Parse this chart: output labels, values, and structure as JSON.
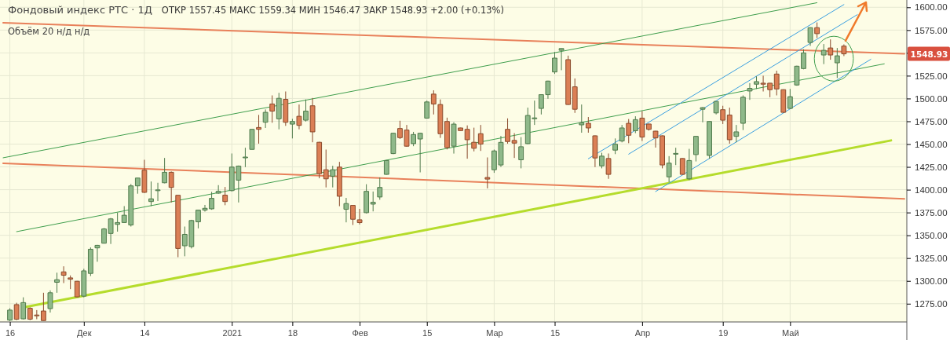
{
  "chart_data": {
    "type": "candlestick",
    "title": "Фондовый индекс РТС · 1Д",
    "subtitle": "ОТКР 1557.45  МАКС 1559.34  МИН 1546.47  ЗАКР 1548.93  +2.00 (+0.13%)",
    "annotations": [
      "Объём 20  н/д н/д",
      "1548.93"
    ],
    "categories": [
      null,
      "16",
      null,
      null,
      null,
      null,
      null,
      null,
      null,
      null,
      null,
      null,
      "Дек",
      null,
      null,
      null,
      null,
      null,
      null,
      null,
      null,
      "14",
      null,
      null,
      null,
      null,
      null,
      null,
      null,
      null,
      null,
      null,
      null,
      null,
      "2021",
      null,
      null,
      null,
      null,
      null,
      null,
      null,
      null,
      "18",
      null,
      null,
      null,
      null,
      null,
      null,
      null,
      null,
      null,
      "Фев",
      null,
      null,
      null,
      null,
      null,
      null,
      null,
      null,
      null,
      "15",
      null,
      null,
      null,
      null,
      null,
      null,
      null,
      null,
      null,
      "Мар",
      null,
      null,
      null,
      null,
      null,
      null,
      null,
      null,
      "15",
      null,
      null,
      null,
      null,
      null,
      null,
      null,
      null,
      null,
      null,
      null,
      null,
      "Апр",
      null,
      null,
      null,
      null,
      null,
      null,
      null,
      null,
      null,
      null,
      null,
      "19",
      null,
      null,
      null,
      null,
      null,
      null,
      null,
      null,
      null,
      "Май",
      null,
      null,
      null,
      null,
      null,
      null,
      null,
      null,
      null,
      null,
      null,
      null,
      null,
      null,
      null,
      null,
      null
    ],
    "ohlc": [
      null,
      [
        1257,
        1270,
        1256,
        1268
      ],
      [
        1274,
        1276,
        1257,
        1258
      ],
      [
        1258.4,
        1282,
        1257.6,
        1276.2
      ],
      [
        1270,
        1271,
        1257,
        1258
      ],
      [
        1262.6,
        1268,
        1258,
        1262.2
      ],
      [
        1267,
        1287,
        1256.2,
        1256.5
      ],
      [
        1269.6,
        1289.6,
        1265.3,
        1287
      ],
      [
        1298.5,
        1309,
        1287,
        1301.3
      ],
      [
        1309.9,
        1316,
        1297.6,
        1306.2
      ],
      [
        1303.3,
        1306,
        1291,
        1301.9
      ],
      [
        1299.6,
        1300,
        1282,
        1282.5
      ],
      [
        1283.3,
        1313.3,
        1282,
        1311
      ],
      [
        1308.2,
        1336.7,
        1305.3,
        1334.7
      ],
      [
        1336.2,
        1339.5,
        1321,
        1339
      ],
      [
        1341.3,
        1358,
        1341,
        1357
      ],
      [
        1352,
        1369,
        1340.5,
        1368
      ],
      [
        1362,
        1374.8,
        1354,
        1364
      ],
      [
        1364,
        1382,
        1363.5,
        1372
      ],
      [
        1361.3,
        1406.2,
        1359.6,
        1404.2
      ],
      [
        1404.2,
        1413,
        1395.6,
        1412.8
      ],
      [
        1421.4,
        1432.8,
        1396.5,
        1397.1
      ],
      [
        1387,
        1409,
        1382,
        1390
      ],
      [
        1399.3,
        1407.6,
        1387.6,
        1399.8
      ],
      [
        1407.6,
        1434.8,
        1407,
        1419.1
      ],
      [
        1419.1,
        1420,
        1386,
        1402.5
      ],
      [
        1393.9,
        1394,
        1326,
        1335.6
      ],
      [
        1338.5,
        1359.6,
        1327,
        1351
      ],
      [
        1337.6,
        1367,
        1335.6,
        1366.2
      ],
      [
        1364.8,
        1378,
        1357.6,
        1377.6
      ],
      [
        1377.6,
        1383.3,
        1376,
        1379.6
      ],
      [
        1379,
        1397.6,
        1378,
        1390.5
      ],
      [
        1396.2,
        1405,
        1395.6,
        1398.2
      ],
      [
        1394,
        1403,
        1383,
        1387
      ],
      [
        1399,
        1439.7,
        1398,
        1424.8
      ],
      [
        1410.5,
        1426.5,
        1386,
        1425.9
      ],
      [
        1435.4,
        1446,
        1424.8,
        1435.8
      ],
      [
        1444.2,
        1466.5,
        1444,
        1466.2
      ],
      [
        1468.2,
        1482,
        1450.5,
        1466.2
      ],
      [
        1474,
        1488,
        1467.7,
        1484.8
      ],
      [
        1494,
        1503.4,
        1473.4,
        1486.2
      ],
      [
        1477.7,
        1506.2,
        1466.2,
        1500.2
      ],
      [
        1499.1,
        1507.7,
        1470,
        1473.9
      ],
      [
        1471.9,
        1477.7,
        1456.2,
        1474.8
      ],
      [
        1480.5,
        1493.4,
        1466.2,
        1470.5
      ],
      [
        1476.2,
        1499,
        1474.8,
        1486.2
      ],
      [
        1492,
        1500.5,
        1452,
        1463.4
      ],
      [
        1452,
        1452.5,
        1412.5,
        1417.6
      ],
      [
        1421.9,
        1444,
        1402.5,
        1411.9
      ],
      [
        1414.8,
        1426.2,
        1402.5,
        1421.9
      ],
      [
        1424.8,
        1430.5,
        1381.9,
        1392.8
      ],
      [
        1378.5,
        1391,
        1364.2,
        1384.8
      ],
      [
        1382.8,
        1383,
        1361.3,
        1367.6
      ],
      [
        1367,
        1379,
        1361.9,
        1363.9
      ],
      [
        1374.8,
        1406,
        1374,
        1398.2
      ],
      [
        1384.2,
        1398,
        1376.2,
        1386.2
      ],
      [
        1392,
        1413.4,
        1389,
        1402.5
      ],
      [
        1416.8,
        1432.5,
        1416.5,
        1432
      ],
      [
        1439.6,
        1462.5,
        1439,
        1461.9
      ],
      [
        1467.1,
        1475.6,
        1455.6,
        1457.1
      ],
      [
        1465.4,
        1471,
        1447,
        1447.7
      ],
      [
        1450.5,
        1463.4,
        1447.7,
        1460.5
      ],
      [
        1455.6,
        1462.5,
        1419,
        1461.9
      ],
      [
        1478.5,
        1497.7,
        1478,
        1496.2
      ],
      [
        1504.8,
        1509,
        1482.5,
        1494
      ],
      [
        1493.4,
        1499,
        1456.8,
        1461.4
      ],
      [
        1474.8,
        1479,
        1444.2,
        1446.2
      ],
      [
        1447.7,
        1474,
        1439.6,
        1471.9
      ],
      [
        1467.7,
        1468,
        1464.5,
        1464.8
      ],
      [
        1466.2,
        1470.5,
        1434,
        1454.8
      ],
      [
        1452,
        1468,
        1442,
        1445.4
      ],
      [
        1461.4,
        1471,
        1442.5,
        1450
      ],
      [
        1413.4,
        1435.4,
        1401.4,
        1411.6
      ],
      [
        1421.9,
        1444,
        1418.5,
        1442.5
      ],
      [
        1427.1,
        1459,
        1425,
        1451.9
      ],
      [
        1466.2,
        1478.2,
        1450.5,
        1452.8
      ],
      [
        1454,
        1462,
        1434.8,
        1451.1
      ],
      [
        1432.8,
        1457.7,
        1423.4,
        1447.1
      ],
      [
        1450.5,
        1490,
        1450,
        1481.4
      ],
      [
        1478.3,
        1497.7,
        1471,
        1478.7
      ],
      [
        1489.1,
        1504.5,
        1482.5,
        1504.2
      ],
      [
        1504.2,
        1519.5,
        1499.7,
        1519.1
      ],
      [
        1529.1,
        1551,
        1527,
        1544.3
      ],
      [
        1552.8,
        1555,
        1531,
        1554.8
      ],
      [
        1542.6,
        1547,
        1493,
        1493.4
      ],
      [
        1512.8,
        1522,
        1484.2,
        1488.2
      ],
      [
        1471.1,
        1493.4,
        1462.5,
        1473.4
      ],
      [
        1472.8,
        1479.7,
        1462.5,
        1467.7
      ],
      [
        1459.1,
        1459.5,
        1424.8,
        1434.8
      ],
      [
        1426.2,
        1440.5,
        1423.4,
        1436.8
      ],
      [
        1434.2,
        1439.7,
        1411.9,
        1416.8
      ],
      [
        1443.4,
        1456.2,
        1439,
        1449.9
      ],
      [
        1453.4,
        1471,
        1451.9,
        1467.7
      ],
      [
        1472.8,
        1477.5,
        1451,
        1459.7
      ],
      [
        1464.7,
        1480.5,
        1462,
        1476.8
      ],
      [
        1478.5,
        1486.2,
        1453.4,
        1457.7
      ],
      [
        1472,
        1472.5,
        1464.8,
        1466.2
      ],
      [
        1464.2,
        1464.5,
        1446.2,
        1456.8
      ],
      [
        1459.1,
        1459.5,
        1423.4,
        1427.1
      ],
      [
        1414.1,
        1436.8,
        1408.2,
        1429.1
      ],
      [
        1439.4,
        1446,
        1427,
        1439.8
      ],
      [
        1434.2,
        1434.5,
        1416.5,
        1416.8
      ],
      [
        1411.9,
        1444.8,
        1410.5,
        1432
      ],
      [
        1438.5,
        1459,
        1431,
        1458.5
      ],
      [
        1488.2,
        1490.5,
        1473.9,
        1490
      ],
      [
        1437.6,
        1475,
        1434,
        1474.8
      ],
      [
        1484.2,
        1497,
        1482.5,
        1496.8
      ],
      [
        1487.7,
        1492,
        1472,
        1476.2
      ],
      [
        1481.9,
        1490,
        1450.5,
        1454.8
      ],
      [
        1458.5,
        1471,
        1452,
        1463.4
      ],
      [
        1472.8,
        1503.4,
        1465.4,
        1501.4
      ],
      [
        1508.2,
        1516.8,
        1498.5,
        1511.1
      ],
      [
        1515.7,
        1524.3,
        1510.5,
        1518.5
      ],
      [
        1516.8,
        1525,
        1507.7,
        1515.7
      ],
      [
        1516.8,
        1517,
        1501.4,
        1509.7
      ],
      [
        1526.8,
        1530.5,
        1503.4,
        1510.5
      ],
      [
        1509.7,
        1510,
        1484.2,
        1484.8
      ],
      [
        1489.1,
        1510.5,
        1488.5,
        1502
      ],
      [
        1514.8,
        1536,
        1514,
        1535.4
      ],
      [
        1532.8,
        1554,
        1532,
        1550
      ],
      [
        1561.4,
        1578,
        1557.7,
        1577.7
      ],
      [
        1577.7,
        1583.4,
        1566.3,
        1571.1
      ],
      [
        1547.7,
        1559.7,
        1537.7,
        1552.8
      ],
      [
        1555.4,
        1564.8,
        1542.5,
        1547.7
      ],
      [
        1539.1,
        1555.4,
        1522.5,
        1546.8
      ],
      [
        1557.45,
        1559.34,
        1546.47,
        1548.93
      ],
      null,
      null,
      null,
      null,
      null,
      null,
      null,
      null,
      null
    ],
    "series": [
      {
        "type": "line",
        "color": "#e8805a",
        "values": [
          1583,
          null,
          null,
          null,
          null,
          null,
          null,
          null,
          null,
          null,
          null,
          null,
          null,
          null,
          null,
          null,
          null,
          null,
          null,
          null,
          null,
          null,
          null,
          null,
          null,
          null,
          null,
          null,
          null,
          null,
          null,
          null,
          null,
          null,
          null,
          null,
          null,
          null,
          null,
          null,
          null,
          null,
          null,
          null,
          null,
          null,
          null,
          null,
          null,
          null,
          null,
          null,
          null,
          null,
          null,
          null,
          null,
          null,
          null,
          null,
          null,
          null,
          null,
          null,
          null,
          null,
          null,
          null,
          null,
          null,
          null,
          null,
          null,
          null,
          null,
          null,
          null,
          null,
          null,
          null,
          null,
          null,
          null,
          null,
          null,
          null,
          null,
          null,
          null,
          null,
          null,
          null,
          null,
          null,
          null,
          null,
          null,
          null,
          null,
          null,
          null,
          null,
          null,
          null,
          null,
          null,
          null,
          null,
          null,
          null,
          null,
          null,
          null,
          null,
          null,
          null,
          null,
          null,
          null,
          null,
          null,
          null,
          null,
          null,
          null,
          null,
          null,
          null,
          null,
          null,
          null,
          null,
          null,
          null,
          1549
        ]
      },
      {
        "type": "line",
        "color": "#e8805a",
        "values": [
          1429,
          null,
          null,
          null,
          null,
          null,
          null,
          null,
          null,
          null,
          null,
          null,
          null,
          null,
          null,
          null,
          null,
          null,
          null,
          null,
          null,
          null,
          null,
          null,
          null,
          null,
          null,
          null,
          null,
          null,
          null,
          null,
          null,
          null,
          null,
          null,
          null,
          null,
          null,
          null,
          null,
          null,
          null,
          null,
          null,
          null,
          null,
          null,
          null,
          null,
          null,
          null,
          null,
          null,
          null,
          null,
          null,
          null,
          null,
          null,
          null,
          null,
          null,
          null,
          null,
          null,
          null,
          null,
          null,
          null,
          null,
          null,
          null,
          null,
          null,
          null,
          null,
          null,
          null,
          null,
          null,
          null,
          null,
          null,
          null,
          null,
          null,
          null,
          null,
          null,
          null,
          null,
          null,
          null,
          null,
          null,
          null,
          null,
          null,
          null,
          null,
          null,
          null,
          null,
          null,
          null,
          null,
          null,
          null,
          null,
          null,
          null,
          null,
          null,
          null,
          null,
          null,
          null,
          null,
          null,
          null,
          null,
          null,
          null,
          null,
          null,
          null,
          null,
          null,
          null,
          null,
          null,
          null,
          null,
          1390
        ]
      },
      {
        "type": "line",
        "color": "#3f9e4d",
        "values": [
          1435,
          null,
          null,
          null,
          null,
          null,
          null,
          null,
          null,
          null,
          null,
          null,
          null,
          null,
          null,
          null,
          null,
          null,
          null,
          null,
          null,
          null,
          null,
          null,
          null,
          null,
          null,
          null,
          null,
          null,
          null,
          null,
          null,
          null,
          null,
          null,
          null,
          null,
          null,
          null,
          null,
          null,
          null,
          null,
          null,
          null,
          null,
          null,
          null,
          null,
          null,
          null,
          null,
          null,
          null,
          null,
          null,
          null,
          null,
          null,
          null,
          null,
          null,
          null,
          null,
          null,
          null,
          null,
          null,
          null,
          null,
          null,
          null,
          null,
          null,
          null,
          null,
          null,
          null,
          null,
          null,
          null,
          null,
          null,
          null,
          null,
          null,
          null,
          null,
          null,
          null,
          null,
          null,
          null,
          null,
          null,
          null,
          null,
          null,
          null,
          null,
          null,
          null,
          null,
          null,
          null,
          null,
          null,
          null,
          null,
          null,
          null,
          null,
          null,
          null,
          null,
          null,
          null,
          null,
          null,
          null,
          1605,
          null,
          null,
          null,
          null,
          null,
          null,
          null,
          null,
          null,
          null,
          null,
          null,
          null
        ]
      },
      {
        "type": "line",
        "color": "#3f9e4d",
        "values": [
          null,
          null,
          1354,
          null,
          null,
          null,
          null,
          null,
          null,
          null,
          null,
          null,
          null,
          null,
          null,
          null,
          null,
          null,
          null,
          null,
          null,
          null,
          null,
          null,
          null,
          null,
          null,
          null,
          null,
          null,
          null,
          null,
          null,
          null,
          null,
          null,
          null,
          null,
          null,
          null,
          null,
          null,
          null,
          null,
          null,
          null,
          null,
          null,
          null,
          null,
          null,
          null,
          null,
          null,
          null,
          null,
          null,
          null,
          null,
          null,
          null,
          null,
          null,
          null,
          null,
          null,
          null,
          null,
          null,
          null,
          null,
          null,
          null,
          null,
          null,
          null,
          null,
          null,
          null,
          null,
          null,
          null,
          null,
          null,
          null,
          null,
          null,
          null,
          null,
          null,
          null,
          null,
          null,
          null,
          null,
          null,
          null,
          null,
          null,
          null,
          null,
          null,
          null,
          null,
          null,
          null,
          null,
          null,
          null,
          null,
          null,
          null,
          null,
          null,
          null,
          null,
          null,
          null,
          null,
          null,
          null,
          null,
          null,
          null,
          null,
          null,
          null,
          null,
          null,
          null,
          null,
          1538,
          null,
          null,
          null
        ]
      },
      {
        "type": "line",
        "color": "#b5dc2c",
        "values": [
          null,
          null,
          null,
          1271,
          null,
          null,
          null,
          null,
          null,
          null,
          null,
          null,
          null,
          null,
          null,
          null,
          null,
          null,
          null,
          null,
          null,
          null,
          null,
          null,
          null,
          null,
          null,
          null,
          null,
          null,
          null,
          null,
          null,
          null,
          null,
          null,
          null,
          null,
          null,
          null,
          null,
          null,
          null,
          null,
          null,
          null,
          null,
          null,
          null,
          null,
          null,
          null,
          null,
          null,
          null,
          null,
          null,
          null,
          null,
          null,
          null,
          null,
          null,
          null,
          null,
          null,
          null,
          null,
          null,
          null,
          null,
          null,
          null,
          null,
          null,
          null,
          null,
          null,
          null,
          null,
          null,
          null,
          null,
          null,
          null,
          null,
          null,
          null,
          null,
          null,
          null,
          null,
          null,
          null,
          null,
          null,
          null,
          null,
          null,
          null,
          null,
          null,
          null,
          null,
          null,
          null,
          null,
          null,
          null,
          null,
          null,
          null,
          null,
          null,
          null,
          null,
          null,
          null,
          null,
          null,
          null,
          null,
          null,
          null,
          null,
          null,
          null,
          null,
          null,
          null,
          null,
          null,
          1454,
          null,
          null
        ]
      },
      {
        "type": "line",
        "color": "#3a9fe0",
        "values": [
          null,
          null,
          null,
          null,
          null,
          null,
          null,
          null,
          null,
          null,
          null,
          null,
          null,
          null,
          null,
          null,
          null,
          null,
          null,
          null,
          null,
          null,
          null,
          null,
          null,
          null,
          null,
          null,
          null,
          null,
          null,
          null,
          null,
          null,
          null,
          null,
          null,
          null,
          null,
          null,
          null,
          null,
          null,
          null,
          null,
          null,
          null,
          null,
          null,
          null,
          null,
          null,
          null,
          null,
          null,
          null,
          null,
          null,
          null,
          null,
          null,
          null,
          null,
          null,
          null,
          null,
          null,
          null,
          null,
          null,
          null,
          null,
          null,
          null,
          null,
          null,
          null,
          null,
          null,
          null,
          null,
          null,
          null,
          null,
          null,
          null,
          null,
          1434,
          null,
          null,
          null,
          null,
          null,
          null,
          null,
          null,
          null,
          null,
          null,
          null,
          null,
          null,
          null,
          null,
          null,
          null,
          null,
          null,
          null,
          null,
          null,
          null,
          null,
          null,
          null,
          null,
          null,
          null,
          null,
          null,
          null,
          null,
          null,
          null,
          null,
          1603,
          null,
          null,
          null,
          null,
          null,
          null,
          null,
          null,
          null
        ]
      },
      {
        "type": "line",
        "color": "#3a9fe0",
        "values": [
          null,
          null,
          null,
          null,
          null,
          null,
          null,
          null,
          null,
          null,
          null,
          null,
          null,
          null,
          null,
          null,
          null,
          null,
          null,
          null,
          null,
          null,
          null,
          null,
          null,
          null,
          null,
          null,
          null,
          null,
          null,
          null,
          null,
          null,
          null,
          null,
          null,
          null,
          null,
          null,
          null,
          null,
          null,
          null,
          null,
          null,
          null,
          null,
          null,
          null,
          null,
          null,
          null,
          null,
          null,
          null,
          null,
          null,
          null,
          null,
          null,
          null,
          null,
          null,
          null,
          null,
          null,
          null,
          null,
          null,
          null,
          null,
          null,
          null,
          null,
          null,
          null,
          null,
          null,
          null,
          null,
          null,
          null,
          null,
          null,
          null,
          null,
          null,
          null,
          null,
          null,
          null,
          null,
          1439,
          null,
          null,
          null,
          null,
          null,
          null,
          null,
          null,
          null,
          null,
          null,
          null,
          null,
          null,
          null,
          null,
          null,
          null,
          null,
          null,
          null,
          null,
          null,
          null,
          null,
          null,
          null,
          null,
          null,
          null,
          null,
          null,
          null,
          1592,
          null,
          null,
          null,
          null,
          null,
          null,
          null
        ]
      },
      {
        "type": "line",
        "color": "#3a9fe0",
        "values": [
          null,
          null,
          null,
          null,
          null,
          null,
          null,
          null,
          null,
          null,
          null,
          null,
          null,
          null,
          null,
          null,
          null,
          null,
          null,
          null,
          null,
          null,
          null,
          null,
          null,
          null,
          null,
          null,
          null,
          null,
          null,
          null,
          null,
          null,
          null,
          null,
          null,
          null,
          null,
          null,
          null,
          null,
          null,
          null,
          null,
          null,
          null,
          null,
          null,
          null,
          null,
          null,
          null,
          null,
          null,
          null,
          null,
          null,
          null,
          null,
          null,
          null,
          null,
          null,
          null,
          null,
          null,
          null,
          null,
          null,
          null,
          null,
          null,
          null,
          null,
          null,
          null,
          null,
          null,
          null,
          null,
          null,
          null,
          null,
          null,
          null,
          null,
          null,
          null,
          null,
          null,
          null,
          null,
          null,
          null,
          null,
          null,
          1398,
          null,
          null,
          null,
          null,
          null,
          null,
          null,
          null,
          null,
          null,
          null,
          null,
          null,
          null,
          null,
          null,
          null,
          null,
          null,
          null,
          null,
          null,
          null,
          null,
          null,
          null,
          null,
          null,
          null,
          null,
          null,
          1543,
          null,
          null,
          null,
          null,
          null
        ]
      }
    ],
    "ylim": [
      1255,
      1608
    ],
    "yticks": [
      {
        "value": 1275,
        "label": "1275.00"
      },
      {
        "value": 1300,
        "label": "1300.00"
      },
      {
        "value": 1325,
        "label": "1325.00"
      },
      {
        "value": 1350,
        "label": "1350.00"
      },
      {
        "value": 1375,
        "label": "1375.00"
      },
      {
        "value": 1400,
        "label": "1400.00"
      },
      {
        "value": 1425,
        "label": "1425.00"
      },
      {
        "value": 1450,
        "label": "1450.00"
      },
      {
        "value": 1475,
        "label": "1475.00"
      },
      {
        "value": 1500,
        "label": "1500.00"
      },
      {
        "value": 1525,
        "label": "1525.00"
      },
      {
        "value": 1550,
        "label": null
      },
      {
        "value": 1575,
        "label": "1575.00"
      },
      {
        "value": 1600,
        "label": "1600.00"
      }
    ],
    "grid": true
  }
}
